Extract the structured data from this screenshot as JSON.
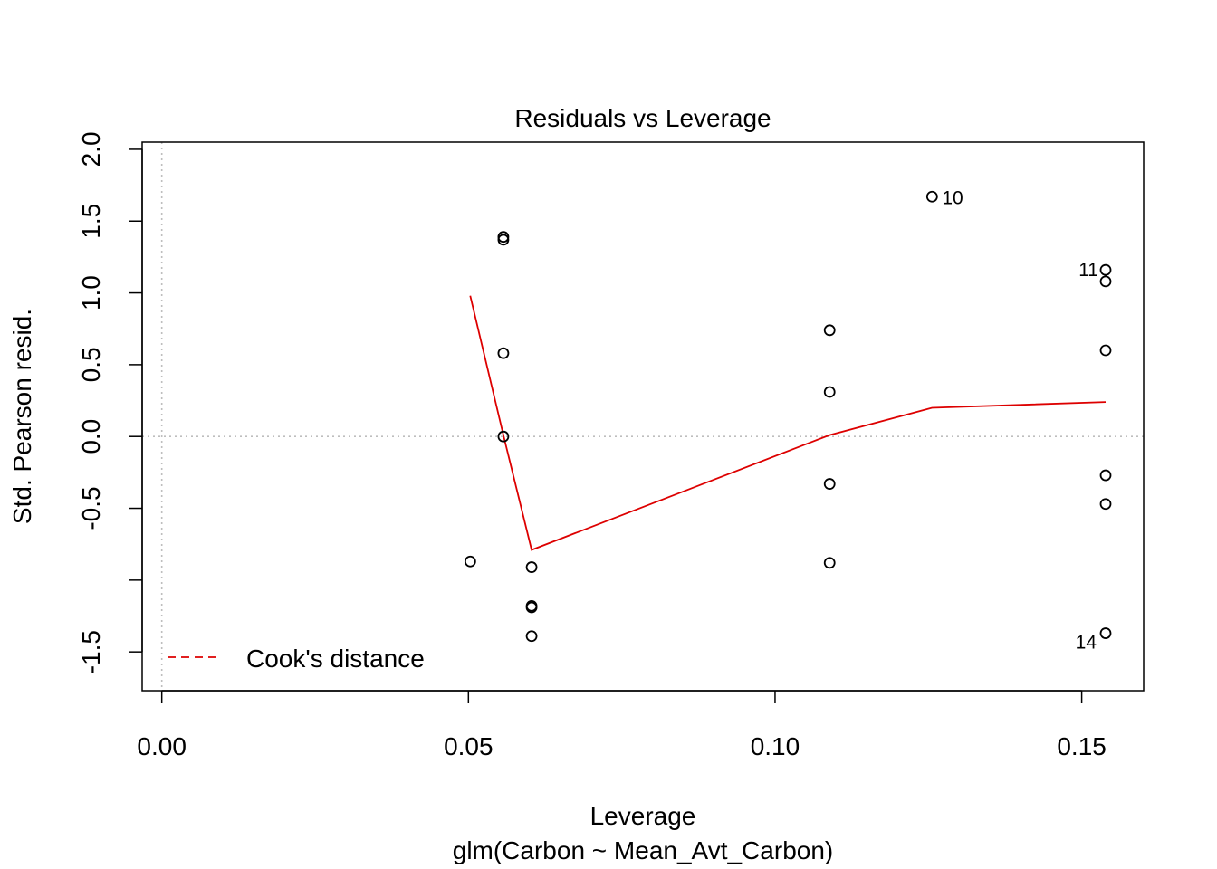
{
  "chart_data": {
    "type": "scatter",
    "title": "Residuals vs Leverage",
    "xlabel": "Leverage",
    "subtitle": "glm(Carbon ~ Mean_Avt_Carbon)",
    "ylabel": "Std. Pearson resid.",
    "xlim": [
      -0.0032,
      0.1601
    ],
    "ylim": [
      -1.77,
      2.05
    ],
    "x_ticks": [
      {
        "value": 0.0,
        "label": "0.00"
      },
      {
        "value": 0.05,
        "label": "0.05"
      },
      {
        "value": 0.1,
        "label": "0.10"
      },
      {
        "value": 0.15,
        "label": "0.15"
      }
    ],
    "y_ticks": [
      {
        "value": -1.5,
        "label": "-1.5"
      },
      {
        "value": -1.0,
        "label": ""
      },
      {
        "value": -0.5,
        "label": "-0.5"
      },
      {
        "value": 0.0,
        "label": "0.0"
      },
      {
        "value": 0.5,
        "label": "0.5"
      },
      {
        "value": 1.0,
        "label": "1.0"
      },
      {
        "value": 1.5,
        "label": "1.5"
      },
      {
        "value": 2.0,
        "label": "2.0"
      }
    ],
    "reference_lines": {
      "x": 0.0,
      "y": 0.0
    },
    "points": [
      {
        "x": 0.0503,
        "y": -0.87
      },
      {
        "x": 0.0557,
        "y": 1.39
      },
      {
        "x": 0.0557,
        "y": 1.37
      },
      {
        "x": 0.0557,
        "y": 0.58
      },
      {
        "x": 0.0557,
        "y": 0.0
      },
      {
        "x": 0.0603,
        "y": -0.91
      },
      {
        "x": 0.0603,
        "y": -1.18
      },
      {
        "x": 0.0603,
        "y": -1.19
      },
      {
        "x": 0.0603,
        "y": -1.39
      },
      {
        "x": 0.1089,
        "y": 0.74
      },
      {
        "x": 0.1089,
        "y": 0.31
      },
      {
        "x": 0.1089,
        "y": -0.33
      },
      {
        "x": 0.1089,
        "y": -0.88
      },
      {
        "x": 0.1256,
        "y": 1.67,
        "label": "10",
        "label_side": "right"
      },
      {
        "x": 0.1539,
        "y": 1.16,
        "label": "11",
        "label_side": "left"
      },
      {
        "x": 0.1539,
        "y": 1.08
      },
      {
        "x": 0.1539,
        "y": 0.6
      },
      {
        "x": 0.1539,
        "y": -0.27
      },
      {
        "x": 0.1539,
        "y": -0.47
      },
      {
        "x": 0.1539,
        "y": -1.37,
        "label": "14",
        "label_side": "left-below"
      }
    ],
    "smoother": {
      "color": "#dd0000",
      "x": [
        0.0503,
        0.0557,
        0.0603,
        0.1089,
        0.1256,
        0.1539
      ],
      "y": [
        0.98,
        0.01,
        -0.79,
        0.01,
        0.2,
        0.24
      ]
    },
    "legend": {
      "position": "bottom-left",
      "label": "Cook's distance",
      "color": "#dd0000",
      "line": "dashed"
    },
    "grid": false
  }
}
